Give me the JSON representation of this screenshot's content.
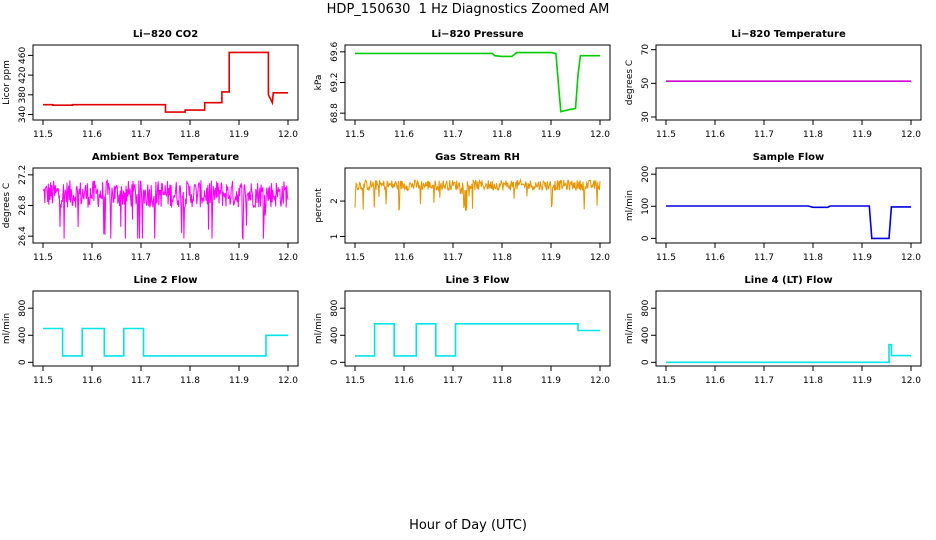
{
  "figure": {
    "title": "HDP_150630  1 Hz Diagnostics Zoomed AM",
    "xlabel": "Hour of Day (UTC)"
  },
  "chart_data": [
    {
      "type": "line",
      "title": "Li−820 CO2",
      "ylabel": "Licor ppm",
      "color": "#e00000",
      "xlim": [
        11.5,
        12.0
      ],
      "ylim": [
        335,
        475
      ],
      "xticks": [
        11.5,
        11.6,
        11.7,
        11.8,
        11.9,
        12.0
      ],
      "yticks": [
        340,
        380,
        420,
        460
      ],
      "x": [
        11.5,
        11.52,
        11.52,
        11.56,
        11.56,
        11.75,
        11.75,
        11.79,
        11.79,
        11.83,
        11.83,
        11.865,
        11.865,
        11.88,
        11.88,
        11.96,
        11.96,
        11.968,
        11.97,
        12.0
      ],
      "y": [
        360,
        360,
        359,
        359,
        360,
        360,
        345,
        345,
        349,
        349,
        364,
        364,
        386,
        386,
        466,
        466,
        380,
        364,
        384,
        384
      ]
    },
    {
      "type": "line",
      "title": "Li−820 Pressure",
      "ylabel": "kPa",
      "color": "#00cc00",
      "xlim": [
        11.5,
        12.0
      ],
      "ylim": [
        68.75,
        69.65
      ],
      "xticks": [
        11.5,
        11.6,
        11.7,
        11.8,
        11.9,
        12.0
      ],
      "yticks": [
        68.8,
        69.2,
        69.6
      ],
      "x": [
        11.5,
        11.78,
        11.785,
        11.8,
        11.82,
        11.83,
        11.9,
        11.91,
        11.915,
        11.92,
        11.94,
        11.95,
        11.955,
        11.96,
        12.0
      ],
      "y": [
        69.58,
        69.58,
        69.55,
        69.54,
        69.54,
        69.59,
        69.59,
        69.58,
        69.2,
        68.82,
        68.85,
        68.86,
        69.3,
        69.55,
        69.55
      ]
    },
    {
      "type": "line",
      "title": "Li−820 Temperature",
      "ylabel": "degrees C",
      "color": "#d000d0",
      "xlim": [
        11.5,
        12.0
      ],
      "ylim": [
        30,
        71
      ],
      "xticks": [
        11.5,
        11.6,
        11.7,
        11.8,
        11.9,
        12.0
      ],
      "yticks": [
        30,
        50,
        70
      ],
      "x": [
        11.5,
        12.0
      ],
      "y": [
        51.3,
        51.3
      ]
    },
    {
      "type": "line",
      "title": "Ambient Box Temperature",
      "ylabel": "degrees C",
      "color": "#ff00ff",
      "xlim": [
        11.5,
        12.0
      ],
      "ylim": [
        26.35,
        27.25
      ],
      "xticks": [
        11.5,
        11.6,
        11.7,
        11.8,
        11.9,
        12.0
      ],
      "yticks": [
        26.4,
        26.8,
        27.2
      ],
      "noise": {
        "base": 26.95,
        "amp": 0.18,
        "n": 420
      },
      "x": [
        11.5,
        11.6,
        11.7,
        11.8,
        11.9,
        12.0
      ],
      "y": [
        27.0,
        26.95,
        26.95,
        26.9,
        26.95,
        26.95
      ]
    },
    {
      "type": "line",
      "title": "Gas Stream RH",
      "ylabel": "percent",
      "color": "#e69500",
      "xlim": [
        11.5,
        12.0
      ],
      "ylim": [
        0.9,
        2.85
      ],
      "xticks": [
        11.5,
        11.6,
        11.7,
        11.8,
        11.9,
        12.0
      ],
      "yticks": [
        1.0,
        2.0
      ],
      "noise": {
        "base": 2.45,
        "amp": 0.15,
        "n": 420
      },
      "x": [
        11.5,
        11.6,
        11.7,
        11.8,
        11.9,
        12.0
      ],
      "y": [
        2.45,
        2.45,
        2.45,
        2.45,
        2.45,
        2.45
      ]
    },
    {
      "type": "line",
      "title": "Sample Flow",
      "ylabel": "ml/min",
      "color": "#0000e0",
      "xlim": [
        11.5,
        12.0
      ],
      "ylim": [
        -5,
        210
      ],
      "xticks": [
        11.5,
        11.6,
        11.7,
        11.8,
        11.9,
        12.0
      ],
      "yticks": [
        0,
        100,
        200
      ],
      "x": [
        11.5,
        11.79,
        11.8,
        11.83,
        11.835,
        11.915,
        11.92,
        11.955,
        11.96,
        12.0
      ],
      "y": [
        101,
        101,
        97,
        97,
        101,
        101,
        0,
        0,
        98,
        98
      ]
    },
    {
      "type": "line",
      "title": "Line 2 Flow",
      "ylabel": "ml/min",
      "color": "#00e5e5",
      "xlim": [
        11.5,
        12.0
      ],
      "ylim": [
        -10,
        1010
      ],
      "xticks": [
        11.5,
        11.6,
        11.7,
        11.8,
        11.9,
        12.0
      ],
      "yticks": [
        0,
        400,
        800
      ],
      "x": [
        11.5,
        11.54,
        11.54,
        11.58,
        11.58,
        11.625,
        11.625,
        11.665,
        11.665,
        11.705,
        11.705,
        11.955,
        11.955,
        12.0
      ],
      "y": [
        500,
        500,
        95,
        95,
        500,
        500,
        95,
        95,
        500,
        500,
        95,
        95,
        400,
        400
      ]
    },
    {
      "type": "line",
      "title": "Line 3 Flow",
      "ylabel": "ml/min",
      "color": "#00e5e5",
      "xlim": [
        11.5,
        12.0
      ],
      "ylim": [
        -10,
        1010
      ],
      "xticks": [
        11.5,
        11.6,
        11.7,
        11.8,
        11.9,
        12.0
      ],
      "yticks": [
        0,
        400,
        800
      ],
      "x": [
        11.5,
        11.54,
        11.54,
        11.58,
        11.58,
        11.625,
        11.625,
        11.665,
        11.665,
        11.705,
        11.705,
        11.955,
        11.955,
        12.0
      ],
      "y": [
        95,
        95,
        570,
        570,
        95,
        95,
        570,
        570,
        95,
        95,
        570,
        570,
        470,
        470
      ]
    },
    {
      "type": "line",
      "title": "Line 4 (LT) Flow",
      "ylabel": "ml/min",
      "color": "#00e5e5",
      "xlim": [
        11.5,
        12.0
      ],
      "ylim": [
        -10,
        1010
      ],
      "xticks": [
        11.5,
        11.6,
        11.7,
        11.8,
        11.9,
        12.0
      ],
      "yticks": [
        0,
        400,
        800
      ],
      "x": [
        11.5,
        11.955,
        11.955,
        11.96,
        11.96,
        12.0
      ],
      "y": [
        0,
        0,
        260,
        260,
        100,
        100
      ]
    }
  ]
}
